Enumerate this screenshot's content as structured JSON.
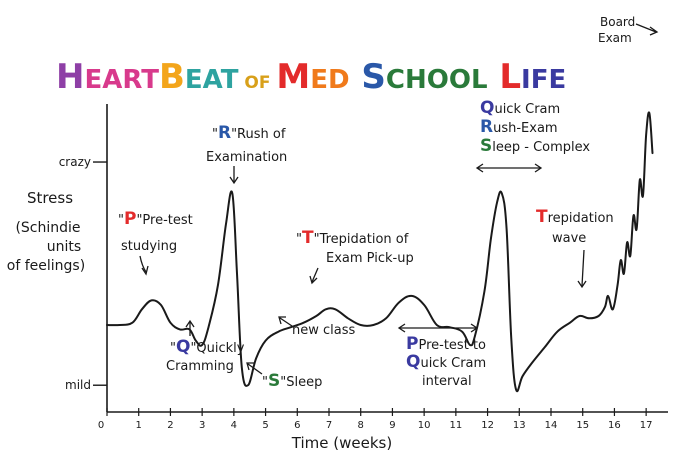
{
  "chart_data": {
    "type": "line",
    "title_segments": [
      {
        "text": "H",
        "color": "#8e3fa6",
        "size": "big"
      },
      {
        "text": "EART",
        "color": "#d83a8c",
        "size": "small"
      },
      {
        "text": "B",
        "color": "#f3a51b",
        "size": "big"
      },
      {
        "text": "EAT",
        "color": "#2ea3a0",
        "size": "small"
      },
      {
        "text": " OF ",
        "color": "#d8a01a",
        "size": "tiny"
      },
      {
        "text": "M",
        "color": "#e32b2b",
        "size": "big"
      },
      {
        "text": "ED",
        "color": "#f07a1b",
        "size": "small"
      },
      {
        "text": " S",
        "color": "#2a58a8",
        "size": "big"
      },
      {
        "text": "CHOOL",
        "color": "#2a7a3a",
        "size": "small"
      },
      {
        "text": " L",
        "color": "#e32b2b",
        "size": "big"
      },
      {
        "text": "IFE",
        "color": "#3a3aa0",
        "size": "small"
      }
    ],
    "ylabel_lines": [
      "Stress",
      "(Schindie",
      "units",
      "of feelings)"
    ],
    "xlabel": "Time (weeks)",
    "y_ticks": [
      {
        "label": "crazy",
        "value": 100
      },
      {
        "label": "mild",
        "value": 0
      }
    ],
    "x_ticks": [
      "0",
      "1",
      "2",
      "3",
      "4",
      "5",
      "6",
      "7",
      "8",
      "9",
      "10",
      "11",
      "12",
      "13",
      "14",
      "15",
      "16",
      "17"
    ],
    "xlim": [
      0,
      17.5
    ],
    "ylim": [
      -12,
      126
    ],
    "series": [
      {
        "x": [
          0,
          0.4,
          0.8,
          1.1,
          1.4,
          1.7,
          2.0,
          2.3,
          2.6,
          2.8,
          3.0,
          3.2,
          3.5,
          3.75,
          3.95,
          4.1,
          4.25,
          4.45,
          4.7,
          5.0,
          5.4,
          5.8,
          6.2,
          6.6,
          6.9,
          7.2,
          7.6,
          8.0,
          8.4,
          8.8,
          9.2,
          9.6,
          10.0,
          10.4,
          10.8,
          11.2,
          11.45,
          11.6,
          11.9,
          12.1,
          12.3,
          12.45,
          12.6,
          12.75,
          12.9,
          13.1,
          13.4,
          13.8,
          14.2,
          14.6,
          14.9,
          15.2,
          15.5,
          15.7,
          15.8,
          15.95,
          16.1,
          16.2,
          16.3,
          16.4,
          16.5,
          16.6,
          16.7,
          16.8,
          16.9,
          17.0,
          17.1,
          17.2
        ],
        "y": [
          27,
          27,
          28,
          34,
          38,
          36,
          28,
          25,
          25,
          20,
          18,
          26,
          45,
          72,
          86,
          50,
          8,
          0,
          12,
          20,
          24,
          26,
          28,
          31,
          34,
          34,
          30,
          27,
          27,
          30,
          37,
          40,
          36,
          27,
          26,
          24,
          18,
          22,
          42,
          65,
          82,
          86,
          70,
          20,
          -2,
          4,
          10,
          17,
          24,
          28,
          31,
          30,
          31,
          35,
          40,
          34,
          45,
          56,
          50,
          64,
          58,
          76,
          70,
          92,
          85,
          112,
          122,
          104
        ]
      }
    ],
    "annotations": [
      {
        "id": "pretest",
        "cap": "P",
        "cap_color": "#e32b2b",
        "lines": [
          "\"Pre-test",
          "studying"
        ]
      },
      {
        "id": "quickly",
        "cap": "Q",
        "cap_color": "#3a3aa0",
        "lines": [
          "\"Quickly",
          "Cramming"
        ]
      },
      {
        "id": "rush",
        "cap": "R",
        "cap_color": "#2a58a8",
        "lines": [
          "\"Rush of",
          "Examination"
        ]
      },
      {
        "id": "sleep",
        "cap": "S",
        "cap_color": "#2a7a3a",
        "lines": [
          "\"Sleep"
        ]
      },
      {
        "id": "trepidation1",
        "cap": "T",
        "cap_color": "#e32b2b",
        "lines": [
          "\"Trepidation of",
          "Exam Pick-up"
        ]
      },
      {
        "id": "newclass",
        "cap": "",
        "cap_color": "#1a1a1a",
        "lines": [
          "new class"
        ]
      },
      {
        "id": "interval",
        "cap": "P",
        "cap_color": "#3a3aa0",
        "lines": [
          "Pre-test to",
          "Quick Cram",
          "interval"
        ]
      },
      {
        "id": "qrs",
        "cap": "",
        "cap_color": "#1a1a1a",
        "lines": [
          "Quick Cram",
          "Rush-Exam",
          "Sleep - Complex"
        ],
        "caps": [
          {
            "letter": "Q",
            "color": "#3a3aa0"
          },
          {
            "letter": "R",
            "color": "#2a58a8"
          },
          {
            "letter": "S",
            "color": "#2a7a3a"
          }
        ]
      },
      {
        "id": "trepwave",
        "cap": "T",
        "cap_color": "#e32b2b",
        "lines": [
          "Trepidation",
          "wave"
        ]
      },
      {
        "id": "board",
        "cap": "",
        "cap_color": "#1a1a1a",
        "lines": [
          "Board",
          "Exam"
        ]
      }
    ]
  }
}
